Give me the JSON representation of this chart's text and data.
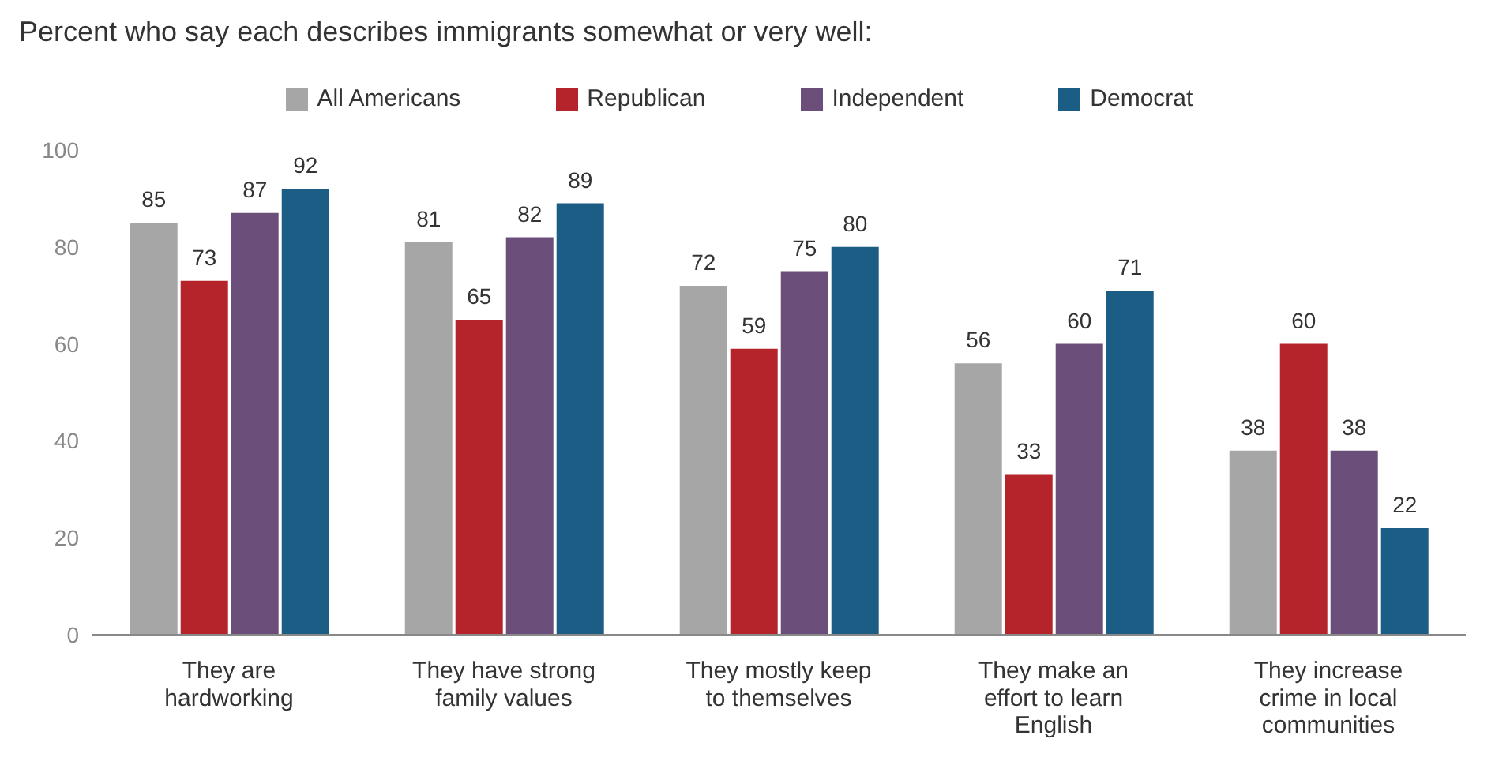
{
  "chart_data": {
    "type": "bar",
    "title": "Percent who say each describes immigrants somewhat or very well:",
    "categories": [
      "They are hardworking",
      "They have strong family values",
      "They mostly keep to themselves",
      "They make an effort to learn English",
      "They increase crime in local communities"
    ],
    "series": [
      {
        "name": "All Americans",
        "color": "#a6a6a6",
        "values": [
          85,
          81,
          72,
          56,
          38
        ]
      },
      {
        "name": "Republican",
        "color": "#b5242a",
        "values": [
          73,
          65,
          59,
          33,
          60
        ]
      },
      {
        "name": "Independent",
        "color": "#6b4e7a",
        "values": [
          87,
          82,
          75,
          60,
          38
        ]
      },
      {
        "name": "Democrat",
        "color": "#1c5d86",
        "values": [
          92,
          89,
          80,
          71,
          22
        ]
      }
    ],
    "ylim": [
      0,
      100
    ],
    "yticks": [
      0,
      20,
      40,
      60,
      80,
      100
    ],
    "grid": false,
    "legend": "top",
    "data_labels": true
  }
}
